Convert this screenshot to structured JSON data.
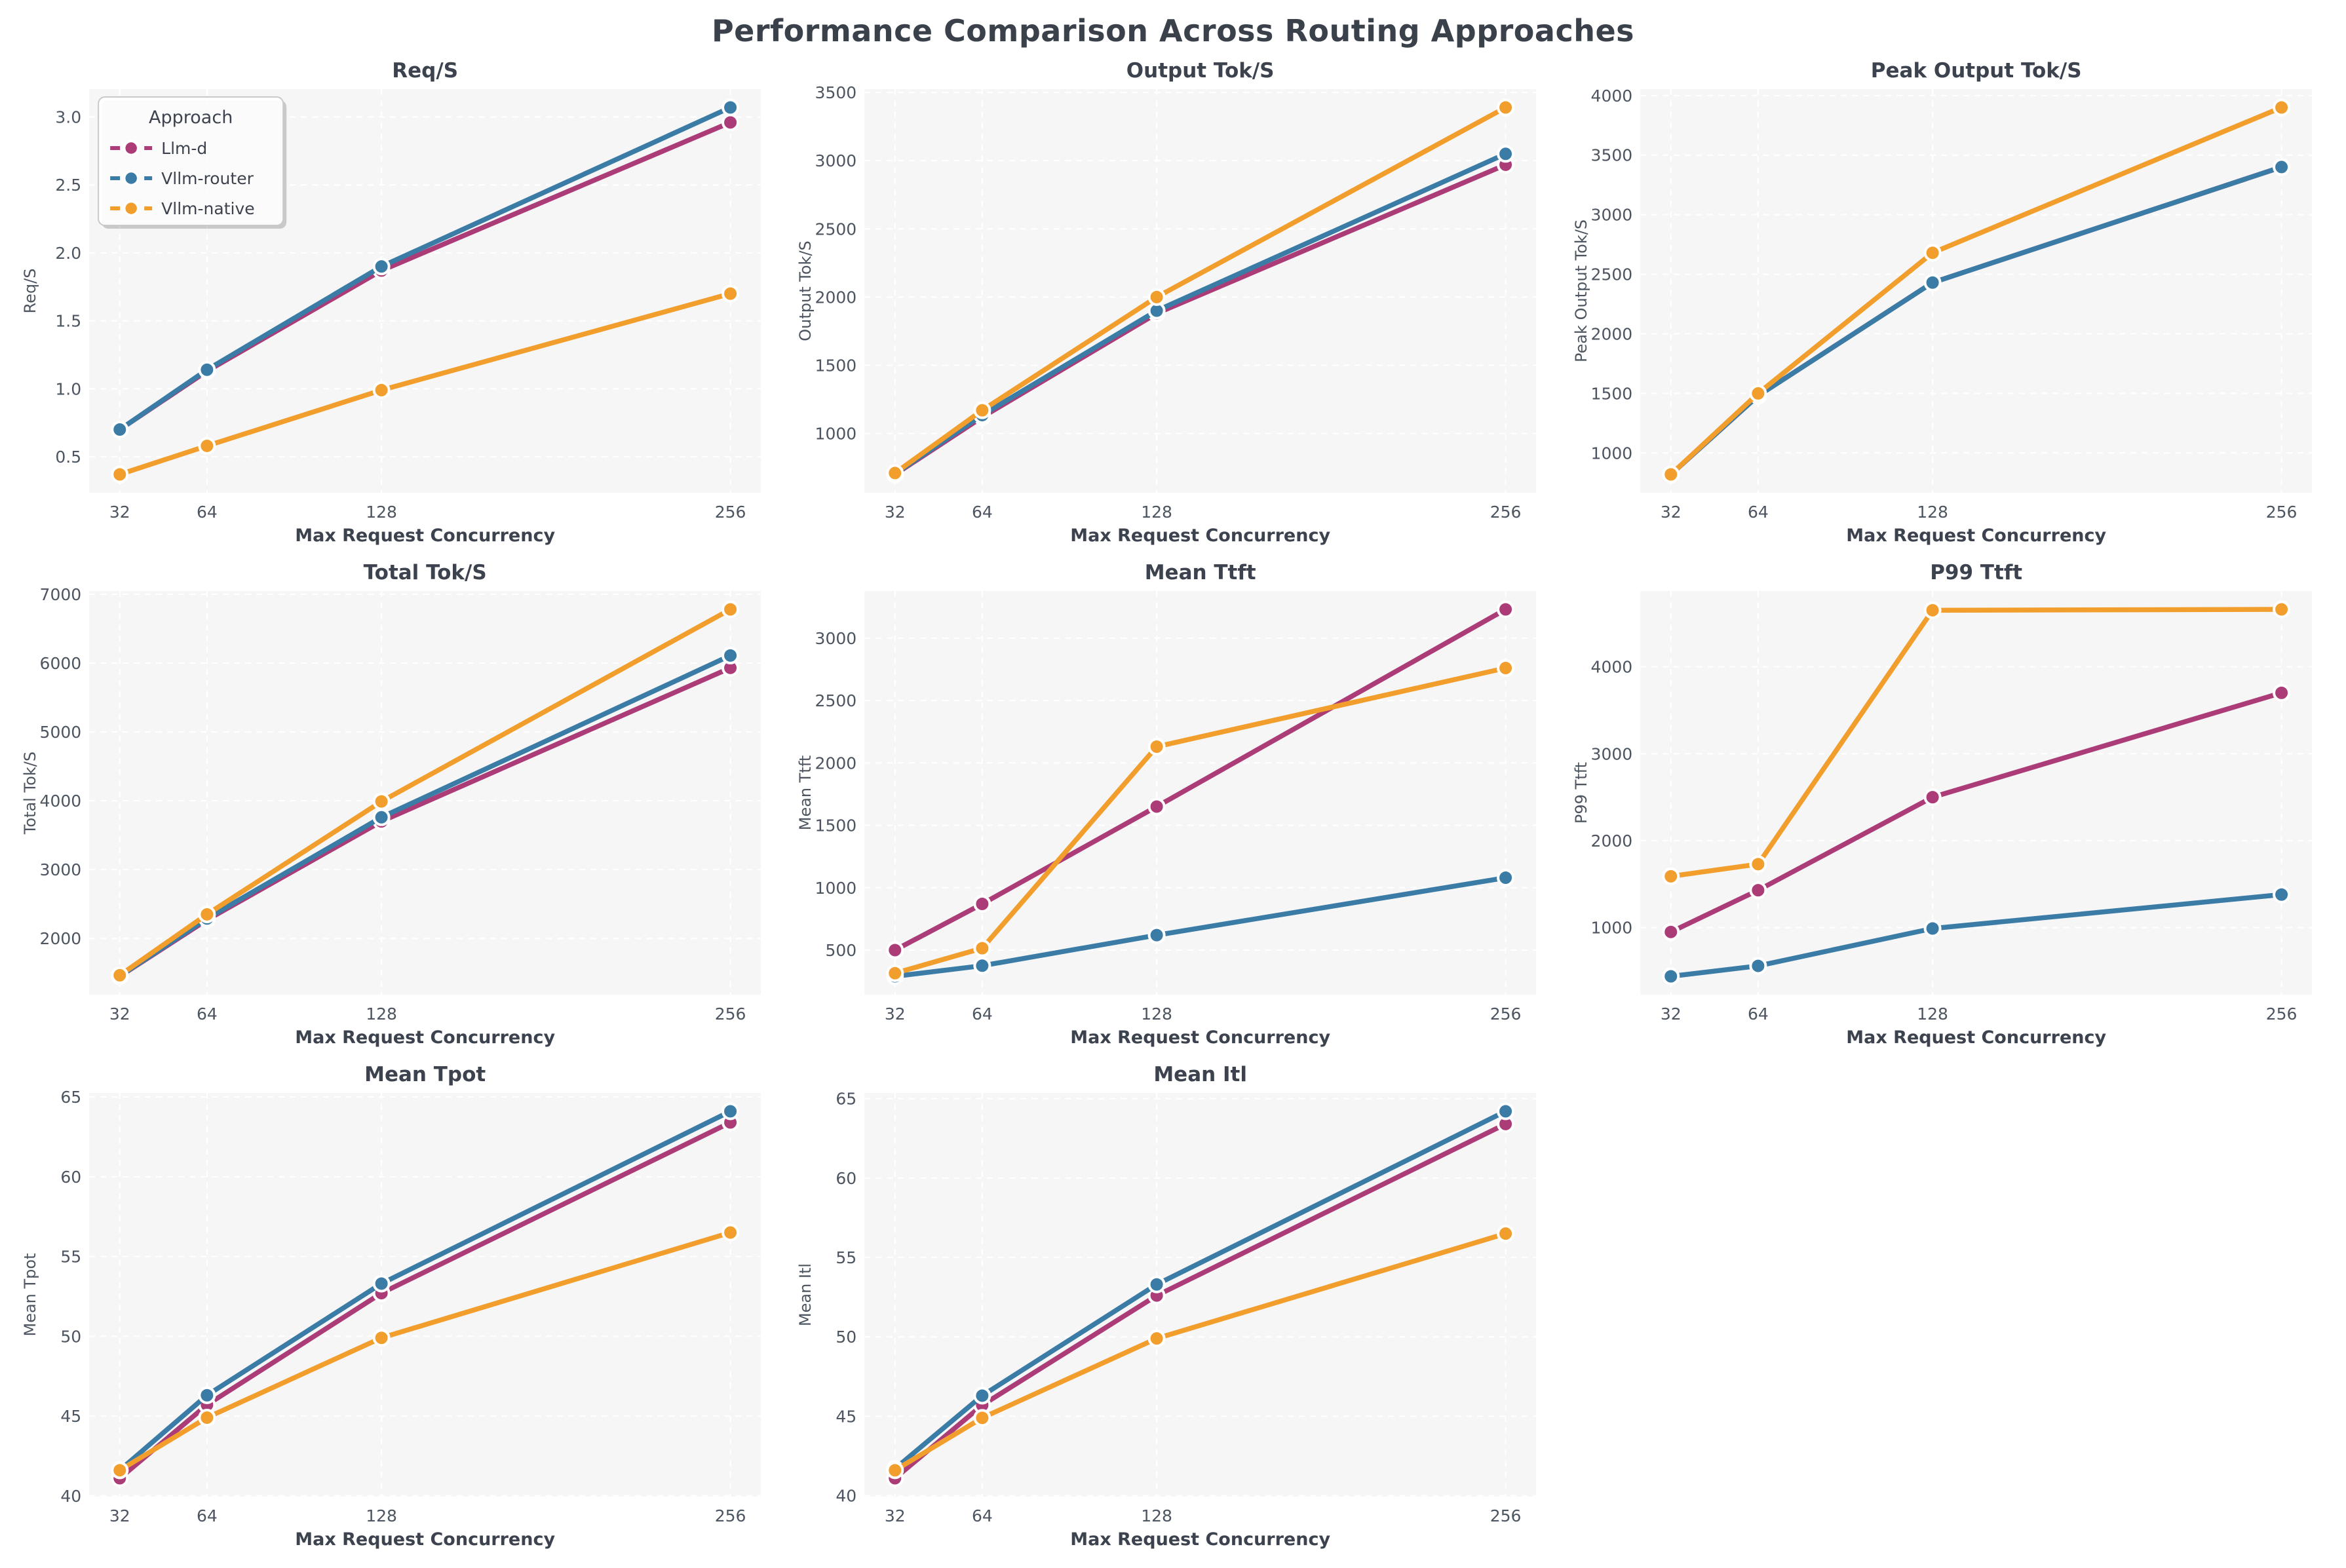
{
  "page_title": "Performance Comparison Across Routing Approaches",
  "colors": {
    "llm_d": "#ab3c78",
    "vllm_router": "#3a7ca6",
    "vllm_native": "#f29e2c",
    "plot_background": "#f6f6f7",
    "grid_line": "#ffffff",
    "title_text": "#3c434e",
    "tick_text": "#4d5560",
    "legend_border": "#c9c9c9"
  },
  "legend": {
    "title": "Approach",
    "entries": [
      {
        "label": "Llm-d",
        "color": "#ab3c78"
      },
      {
        "label": "Vllm-router",
        "color": "#3a7ca6"
      },
      {
        "label": "Vllm-native",
        "color": "#f29e2c"
      }
    ]
  },
  "axis": {
    "xlabel": "Max Request Concurrency",
    "x_ticks": [
      32,
      64,
      128,
      256
    ]
  },
  "chart_data": [
    {
      "type": "line",
      "title": "Req/S",
      "ylabel": "Req/S",
      "x": [
        32,
        64,
        128,
        256
      ],
      "y_ticks": [
        0.5,
        1.0,
        1.5,
        2.0,
        2.5,
        3.0
      ],
      "y_tick_decimals": 1,
      "show_legend": true,
      "series": [
        {
          "name": "Llm-d",
          "color": "#ab3c78",
          "values": [
            0.7,
            1.13,
            1.87,
            2.96
          ]
        },
        {
          "name": "Vllm-router",
          "color": "#3a7ca6",
          "values": [
            0.7,
            1.14,
            1.9,
            3.07
          ]
        },
        {
          "name": "Vllm-native",
          "color": "#f29e2c",
          "values": [
            0.37,
            0.58,
            0.99,
            1.7
          ]
        }
      ]
    },
    {
      "type": "line",
      "title": "Output Tok/S",
      "ylabel": "Output Tok/S",
      "x": [
        32,
        64,
        128,
        256
      ],
      "y_ticks": [
        1000,
        1500,
        2000,
        2500,
        3000,
        3500
      ],
      "y_tick_decimals": 0,
      "show_legend": false,
      "series": [
        {
          "name": "Llm-d",
          "color": "#ab3c78",
          "values": [
            700,
            1120,
            1880,
            2970
          ]
        },
        {
          "name": "Vllm-router",
          "color": "#3a7ca6",
          "values": [
            705,
            1135,
            1900,
            3050
          ]
        },
        {
          "name": "Vllm-native",
          "color": "#f29e2c",
          "values": [
            710,
            1170,
            2000,
            3390
          ]
        }
      ]
    },
    {
      "type": "line",
      "title": "Peak Output Tok/S",
      "ylabel": "Peak Output Tok/S",
      "x": [
        32,
        64,
        128,
        256
      ],
      "y_ticks": [
        1000,
        1500,
        2000,
        2500,
        3000,
        3500,
        4000
      ],
      "y_tick_decimals": 0,
      "show_legend": false,
      "series": [
        {
          "name": "Llm-d",
          "color": "#ab3c78",
          "values": [
            820,
            1480,
            2430,
            3400
          ]
        },
        {
          "name": "Vllm-router",
          "color": "#3a7ca6",
          "values": [
            820,
            1480,
            2430,
            3400
          ]
        },
        {
          "name": "Vllm-native",
          "color": "#f29e2c",
          "values": [
            820,
            1500,
            2680,
            3900
          ]
        }
      ]
    },
    {
      "type": "line",
      "title": "Total Tok/S",
      "ylabel": "Total Tok/S",
      "x": [
        32,
        64,
        128,
        256
      ],
      "y_ticks": [
        2000,
        3000,
        4000,
        5000,
        6000,
        7000
      ],
      "y_tick_decimals": 0,
      "show_legend": false,
      "series": [
        {
          "name": "Llm-d",
          "color": "#ab3c78",
          "values": [
            1450,
            2270,
            3700,
            5930
          ]
        },
        {
          "name": "Vllm-router",
          "color": "#3a7ca6",
          "values": [
            1455,
            2290,
            3760,
            6110
          ]
        },
        {
          "name": "Vllm-native",
          "color": "#f29e2c",
          "values": [
            1465,
            2350,
            3990,
            6780
          ]
        }
      ]
    },
    {
      "type": "line",
      "title": "Mean Ttft",
      "ylabel": "Mean Ttft",
      "x": [
        32,
        64,
        128,
        256
      ],
      "y_ticks": [
        500,
        1000,
        1500,
        2000,
        2500,
        3000
      ],
      "y_tick_decimals": 0,
      "show_legend": false,
      "series": [
        {
          "name": "Llm-d",
          "color": "#ab3c78",
          "values": [
            500,
            870,
            1650,
            3230
          ]
        },
        {
          "name": "Vllm-router",
          "color": "#3a7ca6",
          "values": [
            290,
            375,
            620,
            1080
          ]
        },
        {
          "name": "Vllm-native",
          "color": "#f29e2c",
          "values": [
            315,
            515,
            2130,
            2760
          ]
        }
      ]
    },
    {
      "type": "line",
      "title": "P99 Ttft",
      "ylabel": "P99 Ttft",
      "x": [
        32,
        64,
        128,
        256
      ],
      "y_ticks": [
        1000,
        2000,
        3000,
        4000
      ],
      "y_tick_decimals": 0,
      "show_legend": false,
      "series": [
        {
          "name": "Llm-d",
          "color": "#ab3c78",
          "values": [
            950,
            1430,
            2500,
            3700
          ]
        },
        {
          "name": "Vllm-router",
          "color": "#3a7ca6",
          "values": [
            440,
            560,
            990,
            1380
          ]
        },
        {
          "name": "Vllm-native",
          "color": "#f29e2c",
          "values": [
            1590,
            1730,
            4650,
            4660
          ]
        }
      ]
    },
    {
      "type": "line",
      "title": "Mean Tpot",
      "ylabel": "Mean Tpot",
      "x": [
        32,
        64,
        128,
        256
      ],
      "y_ticks": [
        40,
        45,
        50,
        55,
        60,
        65
      ],
      "y_tick_decimals": 0,
      "show_legend": false,
      "series": [
        {
          "name": "Llm-d",
          "color": "#ab3c78",
          "values": [
            41.1,
            45.7,
            52.7,
            63.4
          ]
        },
        {
          "name": "Vllm-router",
          "color": "#3a7ca6",
          "values": [
            41.6,
            46.3,
            53.3,
            64.1
          ]
        },
        {
          "name": "Vllm-native",
          "color": "#f29e2c",
          "values": [
            41.6,
            44.9,
            49.9,
            56.5
          ]
        }
      ]
    },
    {
      "type": "line",
      "title": "Mean Itl",
      "ylabel": "Mean Itl",
      "x": [
        32,
        64,
        128,
        256
      ],
      "y_ticks": [
        40,
        45,
        50,
        55,
        60,
        65
      ],
      "y_tick_decimals": 0,
      "show_legend": false,
      "series": [
        {
          "name": "Llm-d",
          "color": "#ab3c78",
          "values": [
            41.1,
            45.7,
            52.6,
            63.4
          ]
        },
        {
          "name": "Vllm-router",
          "color": "#3a7ca6",
          "values": [
            41.7,
            46.3,
            53.3,
            64.2
          ]
        },
        {
          "name": "Vllm-native",
          "color": "#f29e2c",
          "values": [
            41.6,
            44.9,
            49.9,
            56.5
          ]
        }
      ]
    }
  ]
}
